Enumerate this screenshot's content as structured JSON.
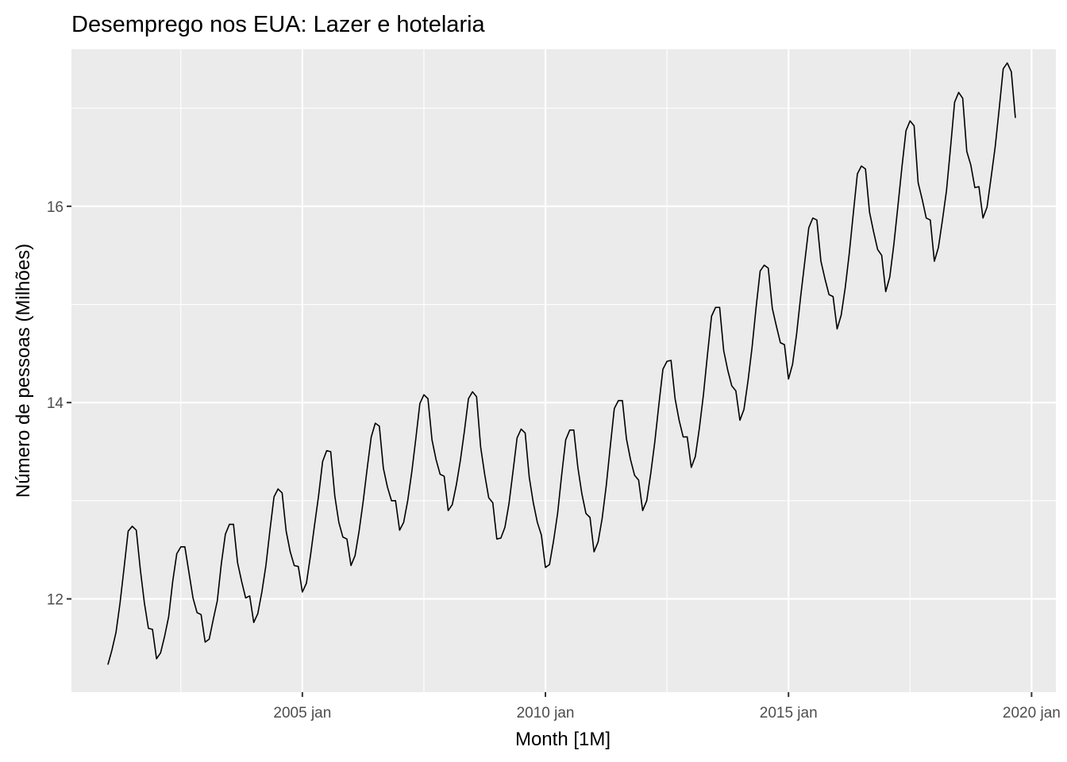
{
  "chart_data": {
    "type": "line",
    "title": "Desemprego nos EUA: Lazer e hotelaria",
    "xlabel": "Month [1M]",
    "ylabel": "Número de pessoas (Milhões)",
    "x_start": "2001-01",
    "x_frequency": "monthly",
    "x_ticks": [
      {
        "date": "2005-01",
        "label": "2005 jan"
      },
      {
        "date": "2010-01",
        "label": "2010 jan"
      },
      {
        "date": "2015-01",
        "label": "2015 jan"
      },
      {
        "date": "2020-01",
        "label": "2020 jan"
      }
    ],
    "y_ticks": [
      {
        "value": 12,
        "label": "12"
      },
      {
        "value": 14,
        "label": "14"
      },
      {
        "value": 16,
        "label": "16"
      }
    ],
    "xlim": [
      "2000-04",
      "2020-07"
    ],
    "ylim": [
      11.05,
      17.6
    ],
    "grid": true,
    "colors": {
      "panel": "#ebebeb",
      "grid": "#ffffff",
      "line": "#000000"
    },
    "series": [
      {
        "name": "",
        "values": [
          11.33,
          11.48,
          11.66,
          11.96,
          12.32,
          12.69,
          12.74,
          12.7,
          12.3,
          11.96,
          11.7,
          11.69,
          11.39,
          11.45,
          11.62,
          11.82,
          12.18,
          12.46,
          12.53,
          12.53,
          12.27,
          12.01,
          11.86,
          11.84,
          11.56,
          11.59,
          11.79,
          11.98,
          12.36,
          12.66,
          12.76,
          12.76,
          12.37,
          12.18,
          12.01,
          12.03,
          11.76,
          11.85,
          12.07,
          12.34,
          12.7,
          13.04,
          13.12,
          13.08,
          12.69,
          12.48,
          12.34,
          12.33,
          12.07,
          12.16,
          12.44,
          12.75,
          13.05,
          13.4,
          13.51,
          13.5,
          13.05,
          12.78,
          12.63,
          12.61,
          12.34,
          12.44,
          12.69,
          12.99,
          13.33,
          13.65,
          13.79,
          13.76,
          13.33,
          13.14,
          13.0,
          13.0,
          12.7,
          12.78,
          13.0,
          13.29,
          13.63,
          13.99,
          14.08,
          14.04,
          13.62,
          13.42,
          13.27,
          13.25,
          12.9,
          12.96,
          13.16,
          13.41,
          13.71,
          14.04,
          14.11,
          14.06,
          13.55,
          13.27,
          13.03,
          12.98,
          12.61,
          12.62,
          12.73,
          12.97,
          13.3,
          13.64,
          13.73,
          13.69,
          13.24,
          12.98,
          12.78,
          12.65,
          12.32,
          12.35,
          12.59,
          12.87,
          13.26,
          13.62,
          13.72,
          13.72,
          13.34,
          13.07,
          12.87,
          12.83,
          12.48,
          12.58,
          12.82,
          13.15,
          13.55,
          13.94,
          14.02,
          14.02,
          13.63,
          13.42,
          13.26,
          13.21,
          12.9,
          13.0,
          13.28,
          13.6,
          13.98,
          14.34,
          14.42,
          14.43,
          14.04,
          13.82,
          13.65,
          13.65,
          13.34,
          13.45,
          13.74,
          14.08,
          14.49,
          14.88,
          14.97,
          14.97,
          14.53,
          14.33,
          14.17,
          14.12,
          13.82,
          13.93,
          14.22,
          14.56,
          14.97,
          15.34,
          15.4,
          15.37,
          14.96,
          14.78,
          14.61,
          14.59,
          14.24,
          14.39,
          14.7,
          15.08,
          15.43,
          15.78,
          15.88,
          15.86,
          15.44,
          15.26,
          15.1,
          15.08,
          14.75,
          14.89,
          15.17,
          15.52,
          15.93,
          16.33,
          16.41,
          16.38,
          15.94,
          15.74,
          15.56,
          15.5,
          15.13,
          15.28,
          15.61,
          16.0,
          16.4,
          16.77,
          16.87,
          16.82,
          16.24,
          16.07,
          15.88,
          15.86,
          15.44,
          15.58,
          15.86,
          16.16,
          16.6,
          17.06,
          17.16,
          17.1,
          16.56,
          16.42,
          16.19,
          16.2,
          15.88,
          15.99,
          16.29,
          16.6,
          16.99,
          17.4,
          17.46,
          17.37,
          16.9
        ]
      }
    ]
  }
}
